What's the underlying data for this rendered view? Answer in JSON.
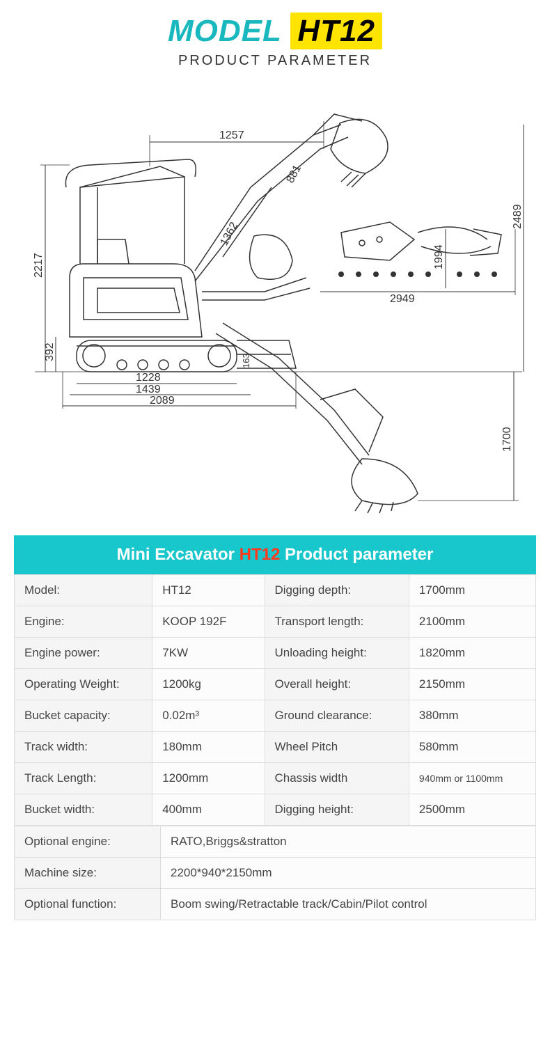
{
  "header": {
    "model_word": "MODEL",
    "model_code": "HT12",
    "subtitle": "PRODUCT PARAMETER",
    "accent_color": "#19b8be",
    "highlight_bg": "#ffe400"
  },
  "diagram": {
    "dimensions": {
      "top_arm_span": "1257",
      "arm_segment": "881",
      "total_height": "2217",
      "mid_reach": "1362",
      "max_reach_horizontal": "2949",
      "side_height_upper": "2489",
      "side_height_mid": "1994",
      "track_clearance": "392",
      "ground_clearance_small": "163",
      "track_inner": "1228",
      "track_outer": "1439",
      "overall_length": "2089",
      "dig_depth_right": "1700"
    },
    "stroke_color": "#333333",
    "background": "#ffffff"
  },
  "spec_table": {
    "header_prefix": "Mini Excavator",
    "header_model": "HT12",
    "header_suffix": "Product parameter",
    "header_bg": "#17c7cc",
    "header_model_color": "#ff3a1f",
    "cell_bg": "#f5f5f5",
    "border_color": "#dcdcdc",
    "rows_two_col": [
      {
        "l1": "Model:",
        "v1": "HT12",
        "l2": "Digging depth:",
        "v2": "1700mm"
      },
      {
        "l1": "Engine:",
        "v1": "KOOP 192F",
        "l2": "Transport length:",
        "v2": "2100mm"
      },
      {
        "l1": "Engine power:",
        "v1": "7KW",
        "l2": "Unloading height:",
        "v2": "1820mm"
      },
      {
        "l1": "Operating Weight:",
        "v1": " 1200kg",
        "l2": "Overall height:",
        "v2": "2150mm"
      },
      {
        "l1": "Bucket capacity:",
        "v1": "0.02m³",
        "l2": "Ground clearance:",
        "v2": "380mm"
      },
      {
        "l1": "Track width:",
        "v1": "180mm",
        "l2": "Wheel Pitch",
        "v2": "580mm"
      },
      {
        "l1": "Track Length:",
        "v1": "1200mm",
        "l2": "Chassis width",
        "v2": "940mm or 1100mm"
      },
      {
        "l1": "Bucket width:",
        "v1": "400mm",
        "l2": "Digging height:",
        "v2": "2500mm"
      }
    ],
    "rows_full": [
      {
        "l": "Optional engine:",
        "v": "RATO,Briggs&stratton"
      },
      {
        "l": "Machine size:",
        "v": "2200*940*2150mm"
      },
      {
        "l": "Optional function:",
        "v": "Boom swing/Retractable track/Cabin/Pilot control"
      }
    ]
  }
}
